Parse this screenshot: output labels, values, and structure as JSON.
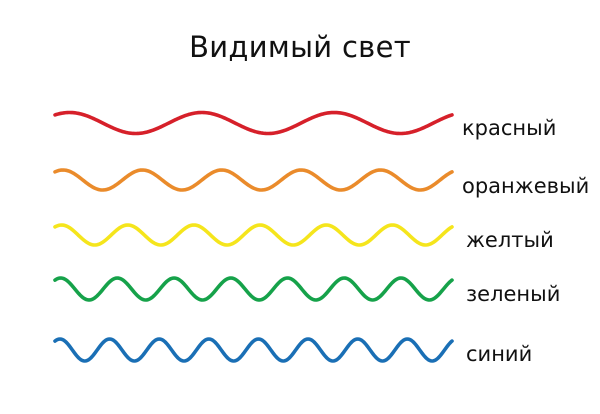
{
  "title": "Видимый свет",
  "waves": [
    {
      "label": "красный",
      "color": "#d6202a",
      "cycles": 3
    },
    {
      "label": "оранжевый",
      "color": "#ea8b2b",
      "cycles": 5
    },
    {
      "label": "желтый",
      "color": "#f5e51c",
      "cycles": 6
    },
    {
      "label": "зеленый",
      "color": "#16a24a",
      "cycles": 7
    },
    {
      "label": "синий",
      "color": "#1a6fb5",
      "cycles": 8
    }
  ]
}
